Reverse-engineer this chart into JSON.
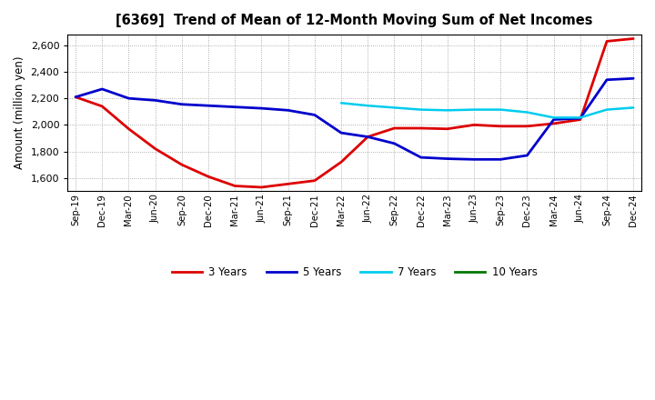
{
  "title": "[6369]  Trend of Mean of 12-Month Moving Sum of Net Incomes",
  "ylabel": "Amount (million yen)",
  "background_color": "#ffffff",
  "plot_bg_color": "#ffffff",
  "grid_color": "#999999",
  "ylim": [
    1500,
    2680
  ],
  "yticks": [
    1600,
    1800,
    2000,
    2200,
    2400,
    2600
  ],
  "x_labels": [
    "Sep-19",
    "Dec-19",
    "Mar-20",
    "Jun-20",
    "Sep-20",
    "Dec-20",
    "Mar-21",
    "Jun-21",
    "Sep-21",
    "Dec-21",
    "Mar-22",
    "Jun-22",
    "Sep-22",
    "Dec-22",
    "Mar-23",
    "Jun-23",
    "Sep-23",
    "Dec-23",
    "Mar-24",
    "Jun-24",
    "Sep-24",
    "Dec-24"
  ],
  "series": {
    "3 Years": {
      "color": "#dd0000",
      "linewidth": 2.0,
      "data_x": [
        0,
        1,
        2,
        3,
        4,
        5,
        6,
        7,
        8,
        9,
        10,
        11,
        12,
        13,
        14,
        15,
        16,
        17,
        18,
        19,
        20,
        21
      ],
      "data_y": [
        2210,
        2140,
        1970,
        1820,
        1700,
        1610,
        1540,
        1530,
        1555,
        1580,
        1720,
        1910,
        1975,
        1975,
        1970,
        2000,
        1990,
        1990,
        2010,
        2040,
        2630,
        2650
      ]
    },
    "5 Years": {
      "color": "#0000cc",
      "linewidth": 2.0,
      "data_x": [
        0,
        1,
        2,
        3,
        4,
        5,
        6,
        7,
        8,
        9,
        10,
        11,
        12,
        13,
        14,
        15,
        16,
        17,
        18,
        19,
        20,
        21
      ],
      "data_y": [
        2210,
        2270,
        2200,
        2185,
        2155,
        2145,
        2135,
        2125,
        2110,
        2075,
        1940,
        1910,
        1860,
        1755,
        1745,
        1740,
        1740,
        1770,
        2040,
        2050,
        2340,
        2350
      ]
    },
    "7 Years": {
      "color": "#00ccee",
      "linewidth": 1.8,
      "data_x": [
        10,
        11,
        12,
        13,
        14,
        15,
        16,
        17,
        18,
        19,
        20,
        21
      ],
      "data_y": [
        2165,
        2145,
        2130,
        2115,
        2110,
        2115,
        2115,
        2095,
        2055,
        2055,
        2115,
        2130
      ]
    },
    "10 Years": {
      "color": "#007700",
      "linewidth": 1.8,
      "data_x": [],
      "data_y": []
    }
  },
  "legend_labels": [
    "3 Years",
    "5 Years",
    "7 Years",
    "10 Years"
  ],
  "legend_colors": [
    "#dd0000",
    "#0000cc",
    "#00ccee",
    "#007700"
  ]
}
